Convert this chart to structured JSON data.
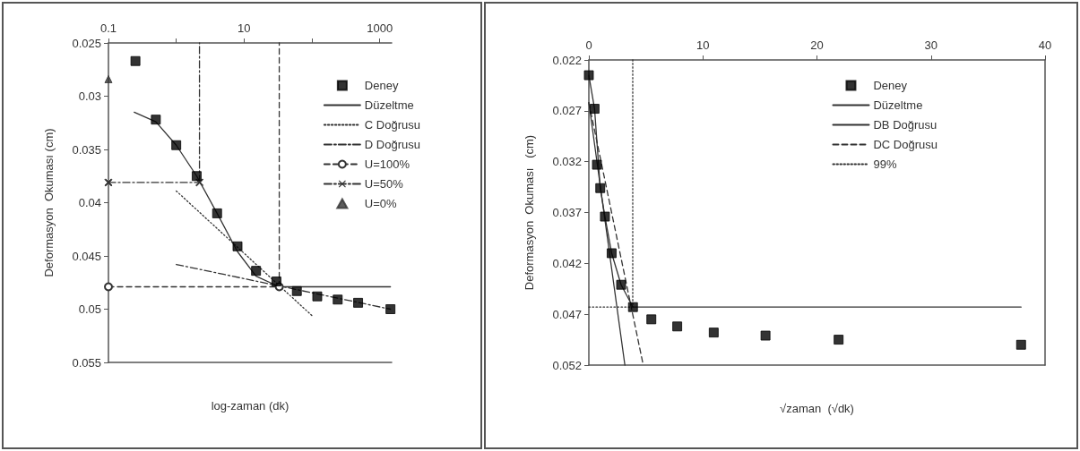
{
  "chart_data": [
    {
      "type": "line",
      "xlabel": "log-zaman (dk)",
      "ylabel": "Deformasyon  Okuması (cm)",
      "log": "x",
      "grid": false,
      "legend": "top right",
      "xlim": [
        0.1,
        1500
      ],
      "xticks": [
        0.1,
        {
          "value": 1,
          "label": null
        },
        10,
        {
          "value": 100,
          "label": null
        },
        1000
      ],
      "ylim": [
        0.055,
        0.025
      ],
      "yticks": [
        0.025,
        0.03,
        0.035,
        0.04,
        0.045,
        0.05,
        0.055
      ],
      "series": [
        {
          "name": "Deney",
          "type": "scatter",
          "marker": "square",
          "color": "#000000",
          "x": [
            0.25,
            0.5,
            1,
            2,
            4,
            8,
            15,
            30,
            60,
            120,
            240,
            480,
            1440
          ],
          "values": [
            0.0267,
            0.0322,
            0.0346,
            0.0375,
            0.041,
            0.0441,
            0.0464,
            0.0474,
            0.0483,
            0.0488,
            0.0491,
            0.0494,
            0.05
          ]
        },
        {
          "name": "Düzeltme",
          "type": "line",
          "marker": "none",
          "line_style": "solid",
          "color": "#333333",
          "x": [
            0.24,
            0.5,
            1,
            2,
            4,
            8,
            15,
            33,
            1440
          ],
          "values": [
            0.0315,
            0.0324,
            0.0346,
            0.0375,
            0.041,
            0.0446,
            0.0469,
            0.0479,
            0.0479
          ]
        },
        {
          "name": "C Doğrusu",
          "type": "line",
          "marker": "none",
          "line_style": "dotted",
          "color": "#333333",
          "x": [
            1,
            104
          ],
          "values": [
            0.0389,
            0.0507
          ]
        },
        {
          "name": "D Doğrusu",
          "type": "line",
          "marker": "none",
          "line_style": "dashdot",
          "color": "#333333",
          "x": [
            1,
            1440
          ],
          "values": [
            0.0458,
            0.05
          ]
        },
        {
          "name": "U=100%",
          "type": "line",
          "marker": "circle",
          "line_style": "dashed",
          "color": "#333333",
          "x": [
            0.1,
            33
          ],
          "values": [
            0.0479,
            0.0479
          ]
        },
        {
          "name": "U=50%",
          "type": "line",
          "marker": "cross",
          "line_style": "dashdot",
          "color": "#333333",
          "x": [
            0.1,
            2.2
          ],
          "values": [
            0.0381,
            0.0381
          ]
        },
        {
          "name": "U=0%",
          "type": "scatter",
          "marker": "triangle",
          "color": "#333333",
          "x": [
            0.1
          ],
          "values": [
            0.0284
          ]
        },
        {
          "type": "line",
          "marker": "none",
          "line_style": "dashed",
          "color": "#333333",
          "x": [
            33,
            33
          ],
          "values": [
            0.0479,
            0.025
          ]
        },
        {
          "type": "line",
          "marker": "none",
          "line_style": "dashdot",
          "color": "#333333",
          "x": [
            2.2,
            2.2
          ],
          "values": [
            0.0381,
            0.025
          ]
        }
      ]
    },
    {
      "type": "line",
      "xlabel": "√zaman  (√dk)",
      "ylabel": "Deformasyon  Okuması   (cm)",
      "grid": false,
      "legend": "top right",
      "xlim": [
        0,
        40
      ],
      "xticks": [
        0,
        10,
        20,
        30,
        40
      ],
      "ylim": [
        0.052,
        0.022
      ],
      "yticks": [
        0.022,
        0.027,
        0.032,
        0.037,
        0.042,
        0.047,
        0.052
      ],
      "series": [
        {
          "name": "Deney",
          "type": "scatter",
          "marker": "square",
          "color": "#000000",
          "x": [
            0,
            0.5,
            0.71,
            1,
            1.41,
            2,
            2.83,
            3.87,
            5.48,
            7.75,
            10.95,
            15.49,
            21.9,
            37.9
          ],
          "values": [
            0.0235,
            0.0268,
            0.0323,
            0.0346,
            0.0374,
            0.041,
            0.0441,
            0.0463,
            0.0475,
            0.0482,
            0.0488,
            0.0491,
            0.0495,
            0.05
          ]
        },
        {
          "name": "Düzeltme",
          "type": "line",
          "marker": "none",
          "line_style": "solid",
          "color": "#333333",
          "x": [
            0,
            0.5,
            1,
            1.41,
            2,
            2.83,
            3.87,
            37.9
          ],
          "values": [
            0.0235,
            0.0268,
            0.0346,
            0.0374,
            0.041,
            0.0441,
            0.0463,
            0.0463
          ]
        },
        {
          "name": "DB Doğrusu",
          "type": "line",
          "marker": "none",
          "line_style": "solid",
          "color": "#333333",
          "x": [
            0,
            3.16
          ],
          "values": [
            0.0262,
            0.052
          ]
        },
        {
          "name": "DC Doğrusu",
          "type": "line",
          "marker": "none",
          "line_style": "dashed",
          "color": "#333333",
          "x": [
            0,
            4.77
          ],
          "values": [
            0.0262,
            0.052
          ]
        },
        {
          "name": "99%",
          "type": "line",
          "marker": "none",
          "line_style": "dotted",
          "color": "#333333",
          "x": [
            0,
            3.85,
            3.85
          ],
          "values": [
            0.0463,
            0.0463,
            0.022
          ]
        }
      ]
    }
  ]
}
